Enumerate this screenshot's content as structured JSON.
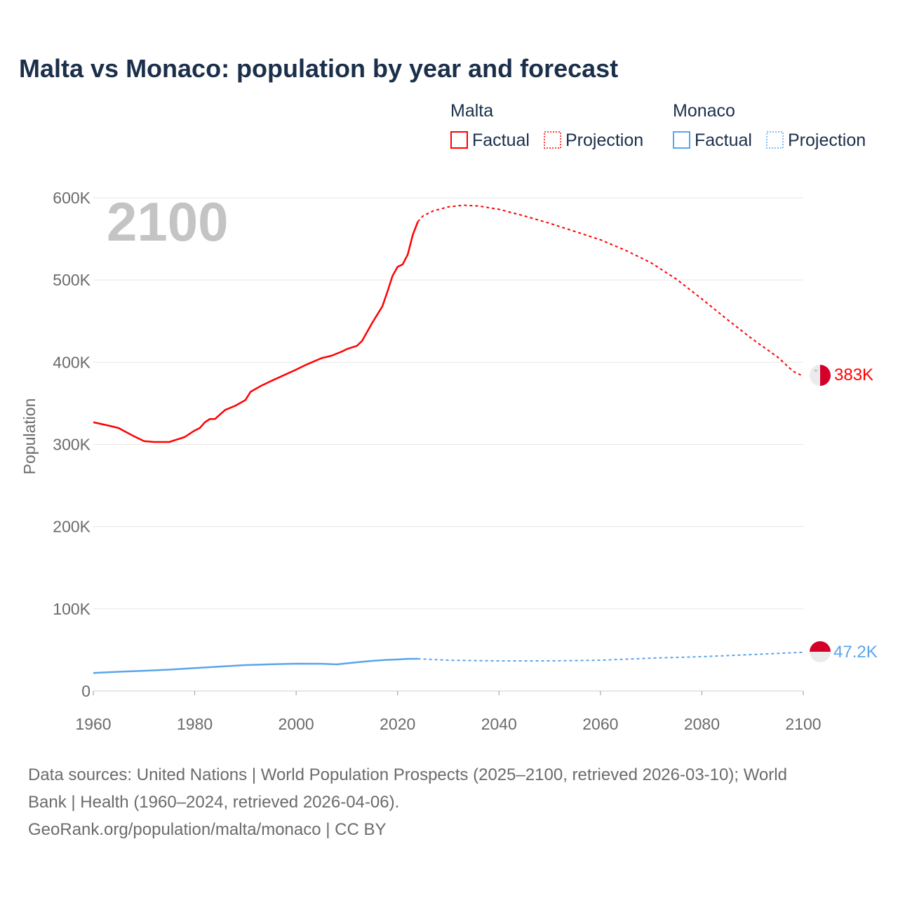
{
  "chart_data": {
    "type": "line",
    "title": "Malta vs Monaco: population by year and forecast",
    "year_label": "2100",
    "xlabel": "",
    "ylabel": "Population",
    "xlim": [
      1960,
      2100
    ],
    "ylim": [
      0,
      600000
    ],
    "x_ticks": [
      "1960",
      "1980",
      "2000",
      "2020",
      "2040",
      "2060",
      "2080",
      "2100"
    ],
    "x_tick_values": [
      1960,
      1980,
      2000,
      2020,
      2040,
      2060,
      2080,
      2100
    ],
    "y_ticks": [
      "0",
      "100K",
      "200K",
      "300K",
      "400K",
      "500K",
      "600K"
    ],
    "y_tick_values": [
      0,
      100000,
      200000,
      300000,
      400000,
      500000,
      600000
    ],
    "grid": true,
    "legend": {
      "placement": "top-right",
      "groups": [
        {
          "name": "Malta",
          "items": [
            "Factual",
            "Projection"
          ]
        },
        {
          "name": "Monaco",
          "items": [
            "Factual",
            "Projection"
          ]
        }
      ]
    },
    "series": [
      {
        "name": "Malta",
        "color": "#ff0000",
        "end_label": "383K",
        "factual": {
          "x": [
            1960,
            1963,
            1965,
            1968,
            1970,
            1972,
            1975,
            1978,
            1980,
            1981,
            1982,
            1983,
            1984,
            1986,
            1988,
            1990,
            1991,
            1993,
            1995,
            2000,
            2002,
            2005,
            2007,
            2009,
            2010,
            2012,
            2013,
            2015,
            2017,
            2018,
            2019,
            2020,
            2021,
            2022,
            2023,
            2024
          ],
          "y": [
            327000,
            323000,
            320000,
            310000,
            304000,
            303000,
            303000,
            309000,
            317000,
            320000,
            327000,
            331000,
            331000,
            342000,
            347000,
            354000,
            364000,
            371000,
            377000,
            391000,
            397000,
            405000,
            408000,
            413000,
            416000,
            420000,
            426000,
            448000,
            468000,
            486000,
            505000,
            516000,
            519000,
            531000,
            555000,
            571000
          ]
        },
        "projection": {
          "x": [
            2024,
            2025,
            2027,
            2030,
            2033,
            2036,
            2040,
            2045,
            2050,
            2055,
            2060,
            2065,
            2070,
            2075,
            2080,
            2085,
            2090,
            2095,
            2098,
            2100
          ],
          "y": [
            571000,
            578000,
            584000,
            589000,
            591000,
            590000,
            586000,
            578000,
            569000,
            559000,
            549000,
            536000,
            521000,
            501000,
            477000,
            452000,
            428000,
            406000,
            389000,
            383000
          ]
        }
      },
      {
        "name": "Monaco",
        "color": "#5aa5ea",
        "end_label": "47.2K",
        "factual": {
          "x": [
            1960,
            1965,
            1970,
            1975,
            1980,
            1985,
            1990,
            1995,
            2000,
            2005,
            2008,
            2012,
            2015,
            2018,
            2020,
            2022,
            2024
          ],
          "y": [
            22000,
            23500,
            24700,
            26000,
            28000,
            29800,
            31600,
            32500,
            33300,
            33200,
            32400,
            35000,
            36700,
            38000,
            38400,
            39200,
            39300
          ]
        },
        "projection": {
          "x": [
            2024,
            2030,
            2040,
            2050,
            2060,
            2070,
            2080,
            2090,
            2100
          ],
          "y": [
            39300,
            37500,
            36700,
            36700,
            37500,
            40000,
            41800,
            44400,
            47200
          ]
        }
      }
    ],
    "sources": [
      "Data sources: United Nations | World Population Prospects (2025–2100, retrieved 2026-03-10); World",
      "Bank | Health (1960–2024, retrieved 2026-04-06).",
      "GeoRank.org/population/malta/monaco | CC BY"
    ]
  }
}
